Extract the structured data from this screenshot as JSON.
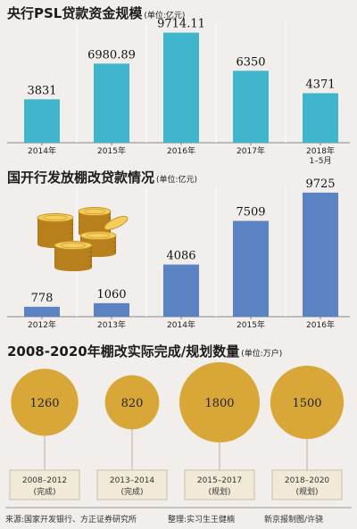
{
  "colors": {
    "psl_bar": "#3fb6cb",
    "shanty_bar": "#5b82c2",
    "circle": "#d9a638",
    "circle_label_box": "#f2ead8",
    "background": "#f1eeeb"
  },
  "chart_data": [
    {
      "type": "bar",
      "title": "央行PSL贷款资金规模",
      "unit": "(单位:亿元)",
      "categories": [
        "2014年",
        "2015年",
        "2016年",
        "2017年",
        "2018年\n1–5月"
      ],
      "values": [
        3831,
        6980.89,
        9714.11,
        6350,
        4371
      ],
      "value_labels": [
        "3831",
        "6980.89",
        "9714.11",
        "6350",
        "4371"
      ],
      "ylim": [
        0,
        10000
      ]
    },
    {
      "type": "bar",
      "title": "国开行发放棚改贷款情况",
      "unit": "(单位:亿元)",
      "categories": [
        "2012年",
        "2013年",
        "2014年",
        "2015年",
        "2016年"
      ],
      "values": [
        778,
        1060,
        4086,
        7509,
        9725
      ],
      "value_labels": [
        "778",
        "1060",
        "4086",
        "7509",
        "9725"
      ],
      "ylim": [
        0,
        10000
      ]
    },
    {
      "type": "bubble",
      "title": "2008-2020年棚改实际完成/规划数量",
      "unit": "(单位:万户)",
      "items": [
        {
          "value": 1260,
          "label": "1260",
          "period": "2008–2012",
          "status": "(完成)"
        },
        {
          "value": 820,
          "label": "820",
          "period": "2013–2014",
          "status": "(完成)"
        },
        {
          "value": 1800,
          "label": "1800",
          "period": "2015–2017",
          "status": "(规划)"
        },
        {
          "value": 1500,
          "label": "1500",
          "period": "2018–2020",
          "status": "(规划)"
        }
      ]
    }
  ],
  "footer": {
    "source": "来源:国家开发银行、方正证券研究所",
    "editor": "整理:实习生王健楠",
    "graphic": "新京报制图/许骁"
  }
}
